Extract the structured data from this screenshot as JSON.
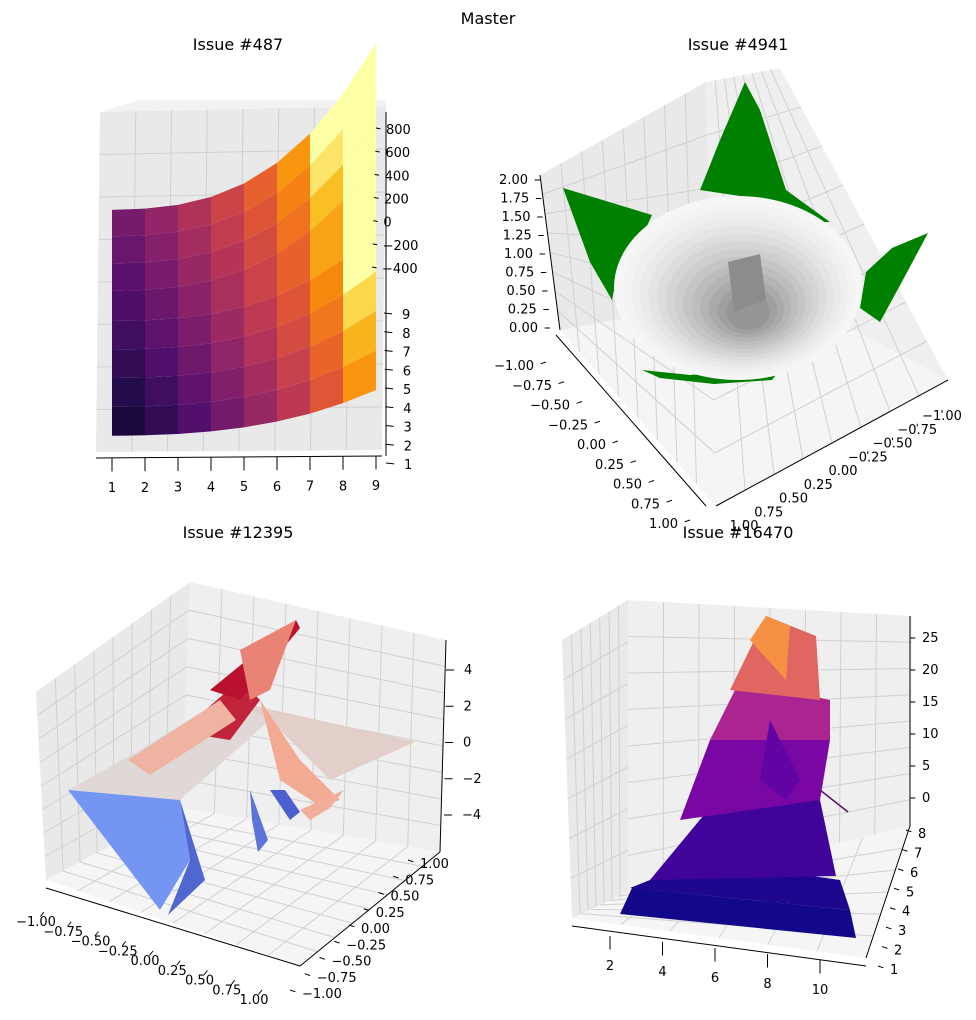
{
  "figure_title": "Master",
  "colors": {
    "pane_left": "#e6e6e6",
    "pane_right": "#efefef",
    "pane_floor": "#f6f6f6",
    "grid": "#cfcfcf",
    "green_surface": "#008000"
  },
  "chart_data": [
    {
      "title": "Issue #487",
      "type": "surface",
      "colormap": "inferno",
      "x": [
        1,
        2,
        3,
        4,
        5,
        6,
        7,
        8,
        9
      ],
      "y": [
        1,
        2,
        3,
        4,
        5,
        6,
        7,
        8,
        9
      ],
      "z_formula": "x^3 - y^2 (approximate)",
      "xticks": [
        "1",
        "2",
        "3",
        "4",
        "5",
        "6",
        "7",
        "8",
        "9"
      ],
      "yticks": [
        "1",
        "2",
        "3",
        "4",
        "5",
        "6",
        "7",
        "8",
        "9"
      ],
      "zticks": [
        "800",
        "600",
        "400",
        "200",
        "0",
        "−200",
        "−400"
      ],
      "zlim": [
        -400,
        800
      ]
    },
    {
      "title": "Issue #4941",
      "type": "surface",
      "surfaces": [
        "white shaded hemisphere (bowl)",
        "green surface z = x² + y²"
      ],
      "zticks": [
        "2.00",
        "1.75",
        "1.50",
        "1.25",
        "1.00",
        "0.75",
        "0.50",
        "0.25",
        "0.00"
      ],
      "yticks_left": [
        "−1.00",
        "−0.75",
        "−0.50",
        "−0.25",
        "0.00",
        "0.25",
        "0.50",
        "0.75",
        "1.00"
      ],
      "xticks_right": [
        "−1.00",
        "−0.75",
        "−0.50",
        "−0.25",
        "0.00",
        "0.25",
        "0.50",
        "0.75",
        "1.00"
      ],
      "zlim": [
        0,
        2
      ],
      "xlim": [
        -1,
        1
      ],
      "ylim": [
        -1,
        1
      ]
    },
    {
      "title": "Issue #12395",
      "type": "surface",
      "colormap": "coolwarm",
      "xticks": [
        "−1.00",
        "−0.75",
        "−0.50",
        "−0.25",
        "0.00",
        "0.25",
        "0.50",
        "0.75",
        "1.00"
      ],
      "yticks": [
        "1.00",
        "0.75",
        "0.50",
        "0.25",
        "0.00",
        "−0.25",
        "−0.50",
        "−0.75",
        "−1.00"
      ],
      "zticks": [
        "4",
        "2",
        "0",
        "−2",
        "−4"
      ],
      "zlim": [
        -5,
        5
      ]
    },
    {
      "title": "Issue #16470",
      "type": "surface",
      "colormap": "plasma",
      "xticks": [
        "2",
        "4",
        "6",
        "8",
        "10"
      ],
      "yticks": [
        "8",
        "7",
        "6",
        "5",
        "4",
        "3",
        "2",
        "1"
      ],
      "zticks": [
        "25",
        "20",
        "15",
        "10",
        "5",
        "0"
      ],
      "zlim": [
        0,
        27
      ]
    }
  ]
}
